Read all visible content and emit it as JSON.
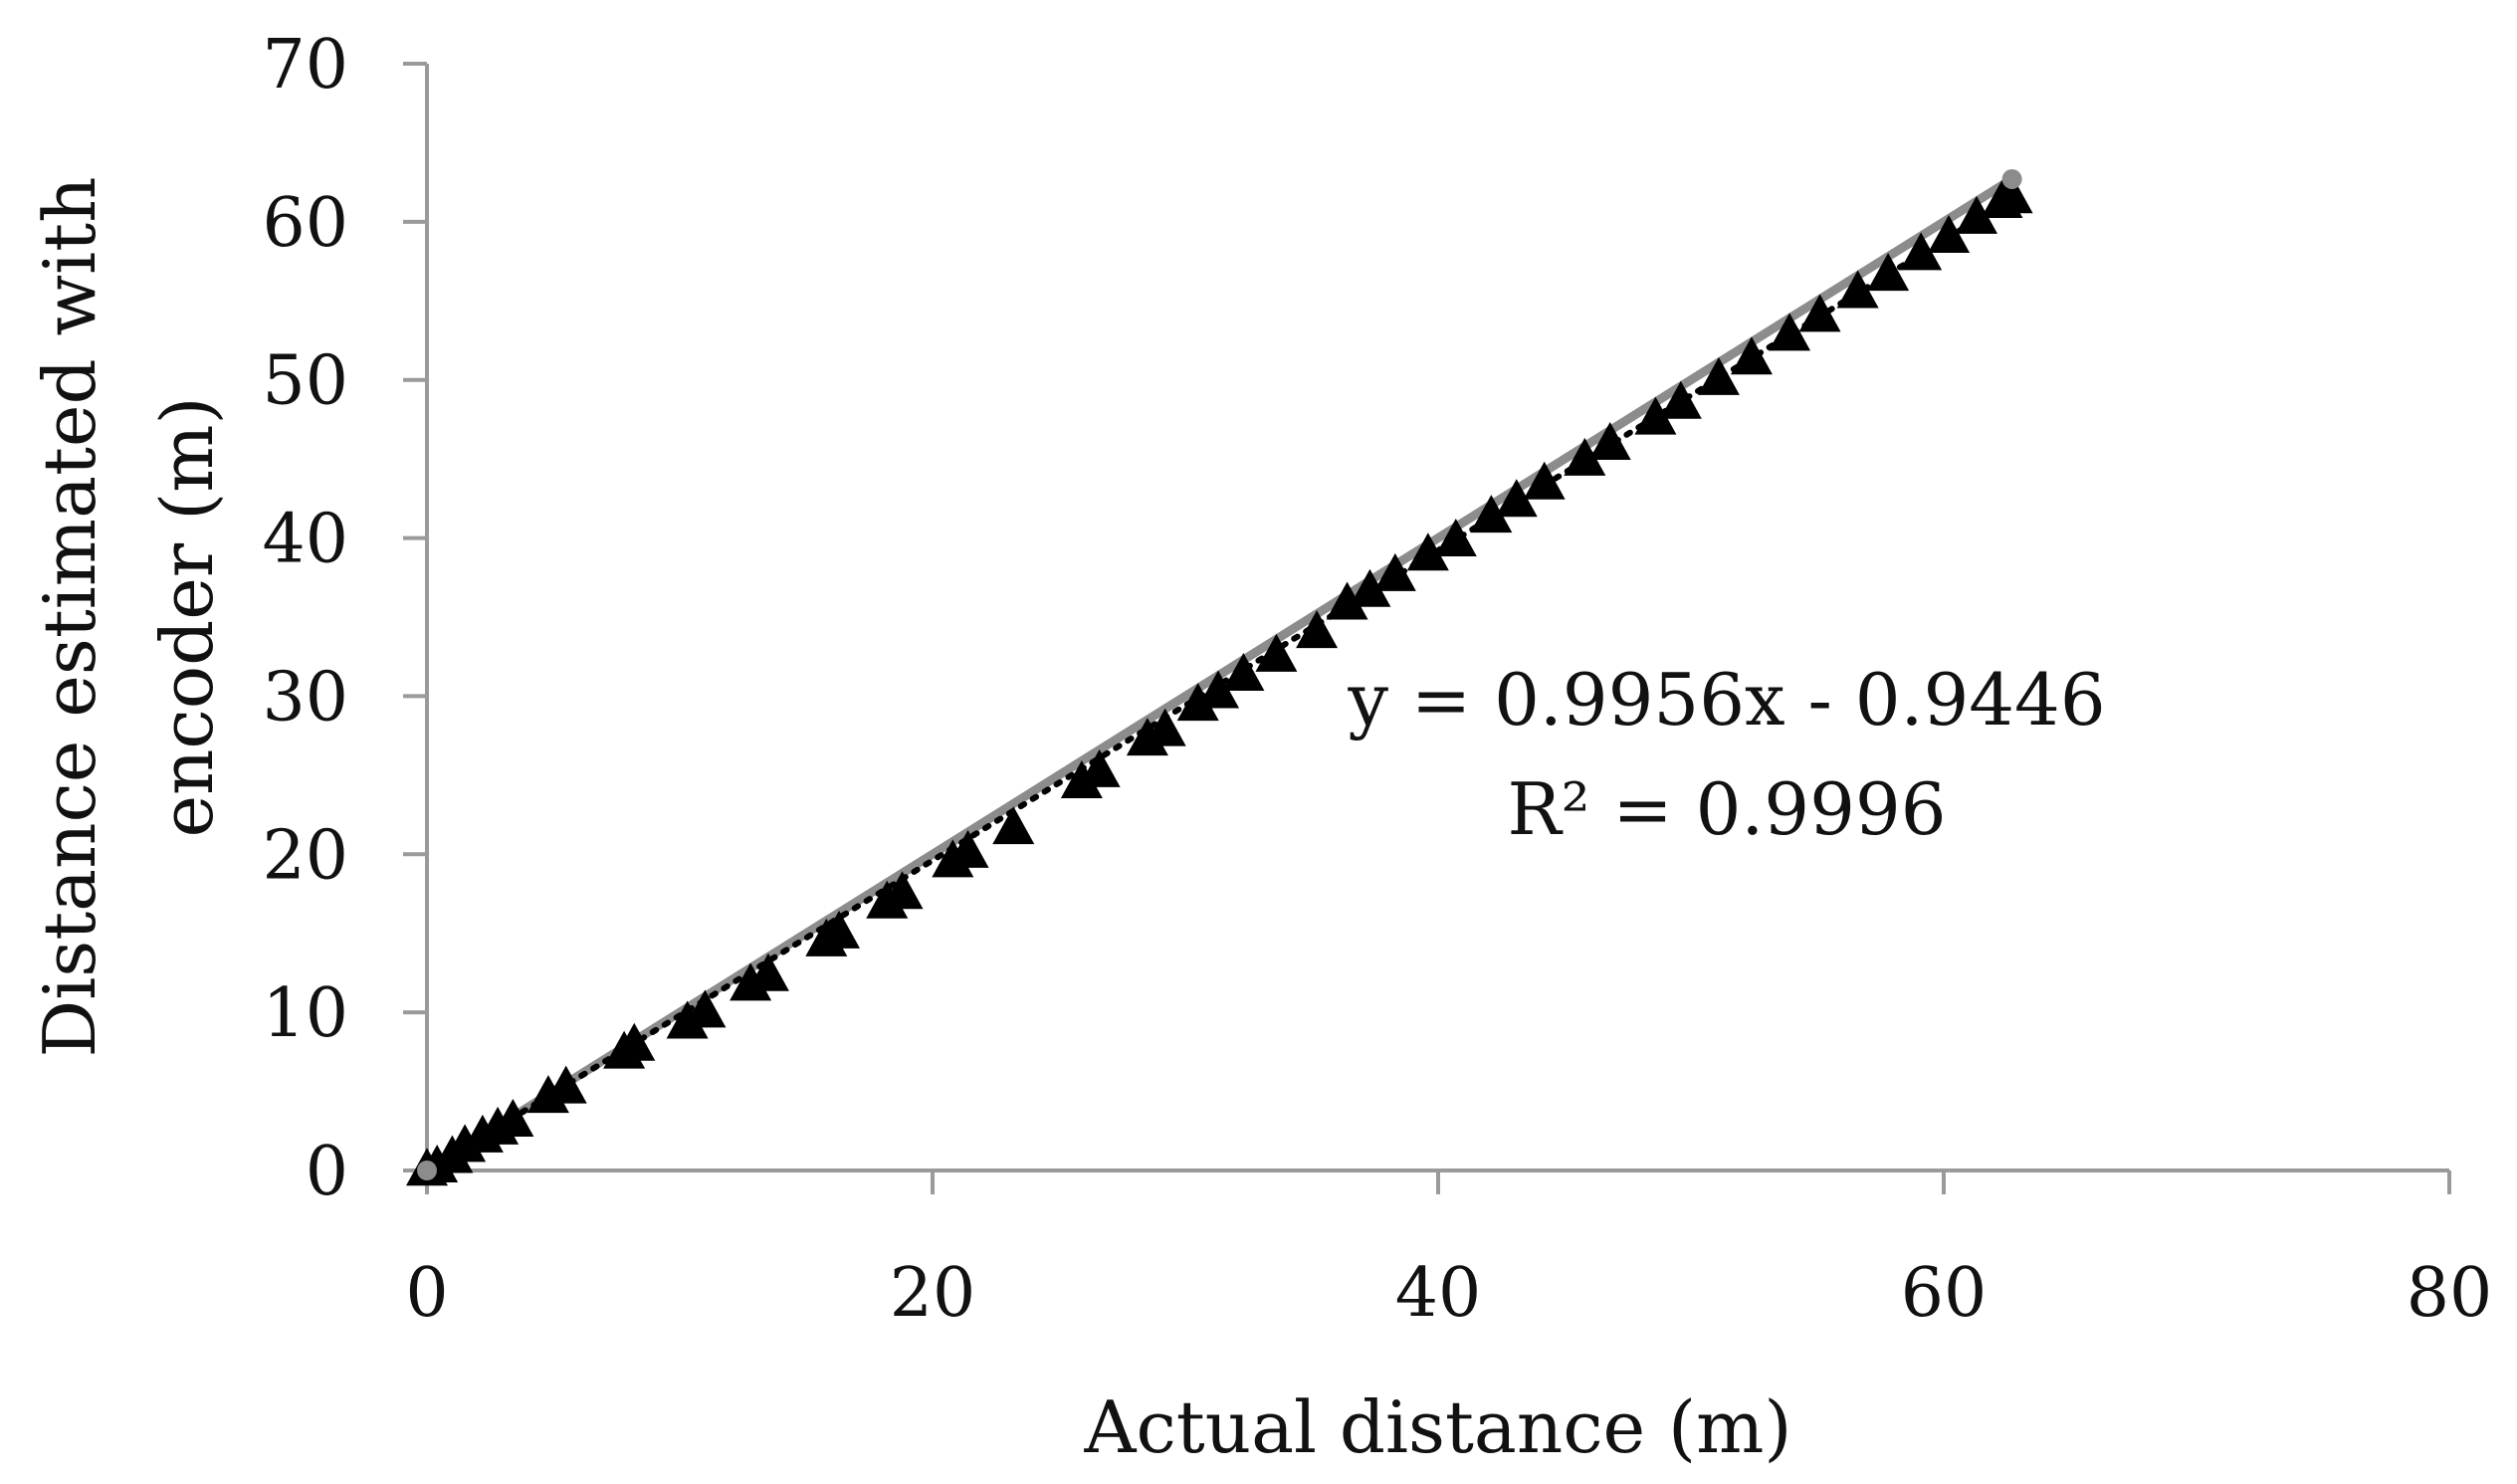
{
  "chart_data": {
    "type": "scatter",
    "title": "",
    "xlabel": "Actual distance (m)",
    "ylabel_lines": [
      "Distance estimated with",
      "encoder (m)"
    ],
    "xlim": [
      0,
      80
    ],
    "ylim": [
      0,
      70
    ],
    "xticks": [
      0,
      20,
      40,
      60,
      80
    ],
    "yticks": [
      0,
      10,
      20,
      30,
      40,
      50,
      60,
      70
    ],
    "xtick_labels": [
      "0",
      "20",
      "40",
      "60",
      "80"
    ],
    "ytick_labels": [
      "0",
      "10",
      "20",
      "30",
      "40",
      "50",
      "60",
      "70"
    ],
    "grid": false,
    "legend": "none",
    "series": [
      {
        "marker": "triangle",
        "color": "#000000",
        "x": [
          0,
          0.4,
          1,
          1.5,
          2.2,
          2.8,
          3.4,
          4.8,
          5.5,
          7.8,
          8.2,
          10.3,
          11,
          12.8,
          13.5,
          15.8,
          16.3,
          18.2,
          18.8,
          20.8,
          21.4,
          23.2,
          25.9,
          26.6,
          28.5,
          29.2,
          30.5,
          31.3,
          32.3,
          33.6,
          35.2,
          36.4,
          37.3,
          38.3,
          39.6,
          40.7,
          42.1,
          43.1,
          44.2,
          45.8,
          46.8,
          48.6,
          49.6,
          51.1,
          52.4,
          53.9,
          55.1,
          56.6,
          57.8,
          59.1,
          60.2,
          61.3,
          62.3,
          62.7
        ],
        "y": [
          0,
          0.2,
          0.8,
          1.5,
          2.1,
          2.6,
          3.1,
          4.6,
          5.2,
          7.4,
          7.9,
          9.3,
          10.0,
          11.7,
          12.3,
          14.5,
          15.0,
          16.9,
          17.5,
          19.5,
          20.1,
          21.6,
          24.5,
          25.2,
          27.2,
          27.8,
          29.4,
          30.2,
          31.3,
          32.5,
          34.0,
          35.8,
          36.6,
          37.6,
          38.9,
          39.8,
          41.3,
          42.3,
          43.4,
          44.9,
          45.9,
          47.5,
          48.5,
          50.0,
          51.3,
          52.8,
          54.0,
          55.5,
          56.6,
          57.9,
          59.0,
          60.2,
          61.2,
          61.5
        ]
      }
    ],
    "trendline": {
      "style": "dotted",
      "color": "#000000",
      "slope": 0.9956,
      "intercept": -0.9446,
      "x_range": [
        0,
        62.7
      ]
    },
    "reference_line": {
      "style": "solid",
      "color": "#8c8c8c",
      "x": [
        0,
        62.7
      ],
      "y": [
        0,
        62.7
      ]
    },
    "annotations": [
      "y = 0.9956x - 0.9446",
      "R² = 0.9996"
    ]
  }
}
